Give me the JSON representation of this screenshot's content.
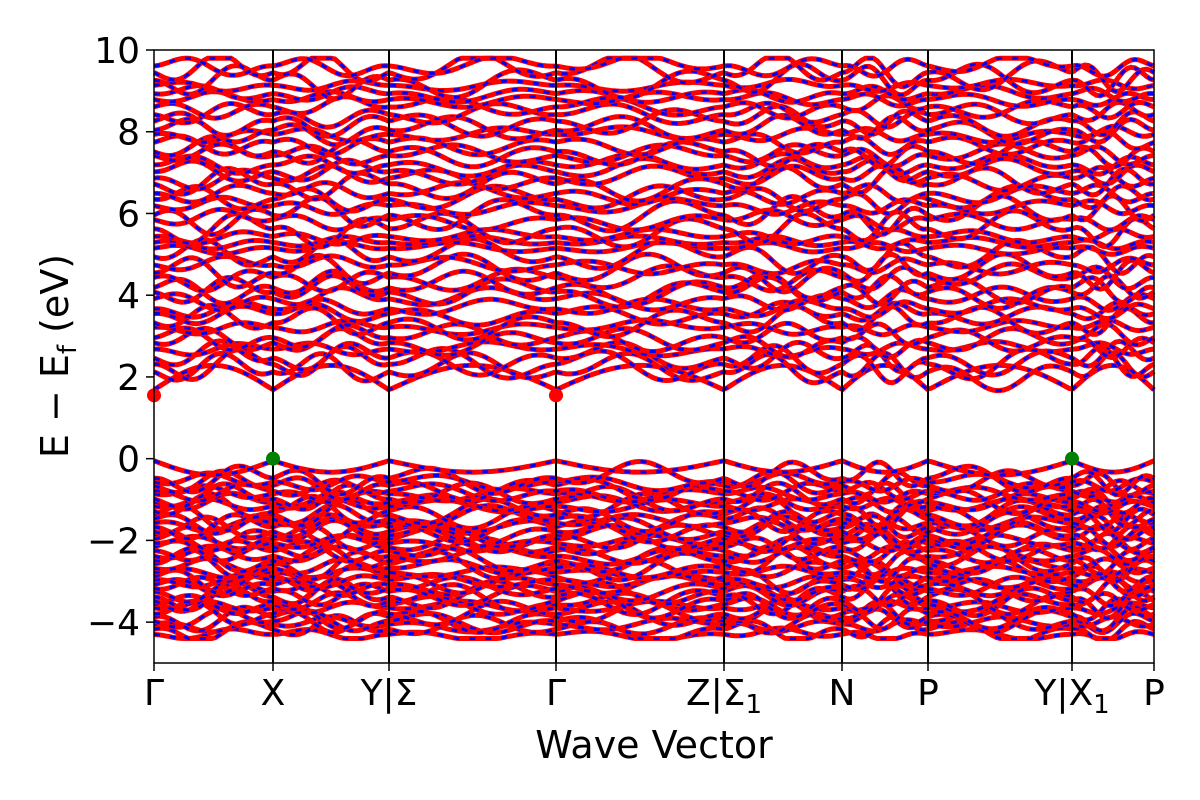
{
  "chart_data": {
    "type": "line",
    "title": "",
    "xlabel": "Wave Vector",
    "ylabel": "E − E",
    "ylabel_sub": "f",
    "ylabel_unit": " (eV)",
    "ylim": [
      -5,
      10
    ],
    "yticks": [
      {
        "value": -4,
        "label": "−4"
      },
      {
        "value": -2,
        "label": "−2"
      },
      {
        "value": 0,
        "label": "0"
      },
      {
        "value": 2,
        "label": "2"
      },
      {
        "value": 4,
        "label": "4"
      },
      {
        "value": 6,
        "label": "6"
      },
      {
        "value": 8,
        "label": "8"
      },
      {
        "value": 10,
        "label": "10"
      }
    ],
    "xlim": [
      0,
      1
    ],
    "kpoints": [
      {
        "label": "Γ",
        "sub": "",
        "pos": 0.0
      },
      {
        "label": "X",
        "sub": "",
        "pos": 0.119
      },
      {
        "label": "Y|Σ",
        "sub": "",
        "pos": 0.235
      },
      {
        "label": "Γ",
        "sub": "",
        "pos": 0.402
      },
      {
        "label": "Z|Σ",
        "sub": "1",
        "pos": 0.57
      },
      {
        "label": "N",
        "sub": "",
        "pos": 0.688
      },
      {
        "label": "P",
        "sub": "",
        "pos": 0.774
      },
      {
        "label": "Y|X",
        "sub": "1",
        "pos": 0.918
      },
      {
        "label": "P",
        "sub": "",
        "pos": 1.0
      }
    ],
    "vbm": {
      "energy": 0.0,
      "points": [
        0.119,
        0.918
      ]
    },
    "cbm": {
      "energy": 1.55,
      "points": [
        0.0,
        0.402
      ]
    },
    "series": [
      {
        "color": "#ff0000",
        "style": "solid"
      },
      {
        "color": "#0000ff",
        "style": "dashed"
      }
    ],
    "marker_colors": {
      "vbm": "#008000",
      "cbm": "#ff0000"
    },
    "grid": false,
    "legend": "none"
  }
}
